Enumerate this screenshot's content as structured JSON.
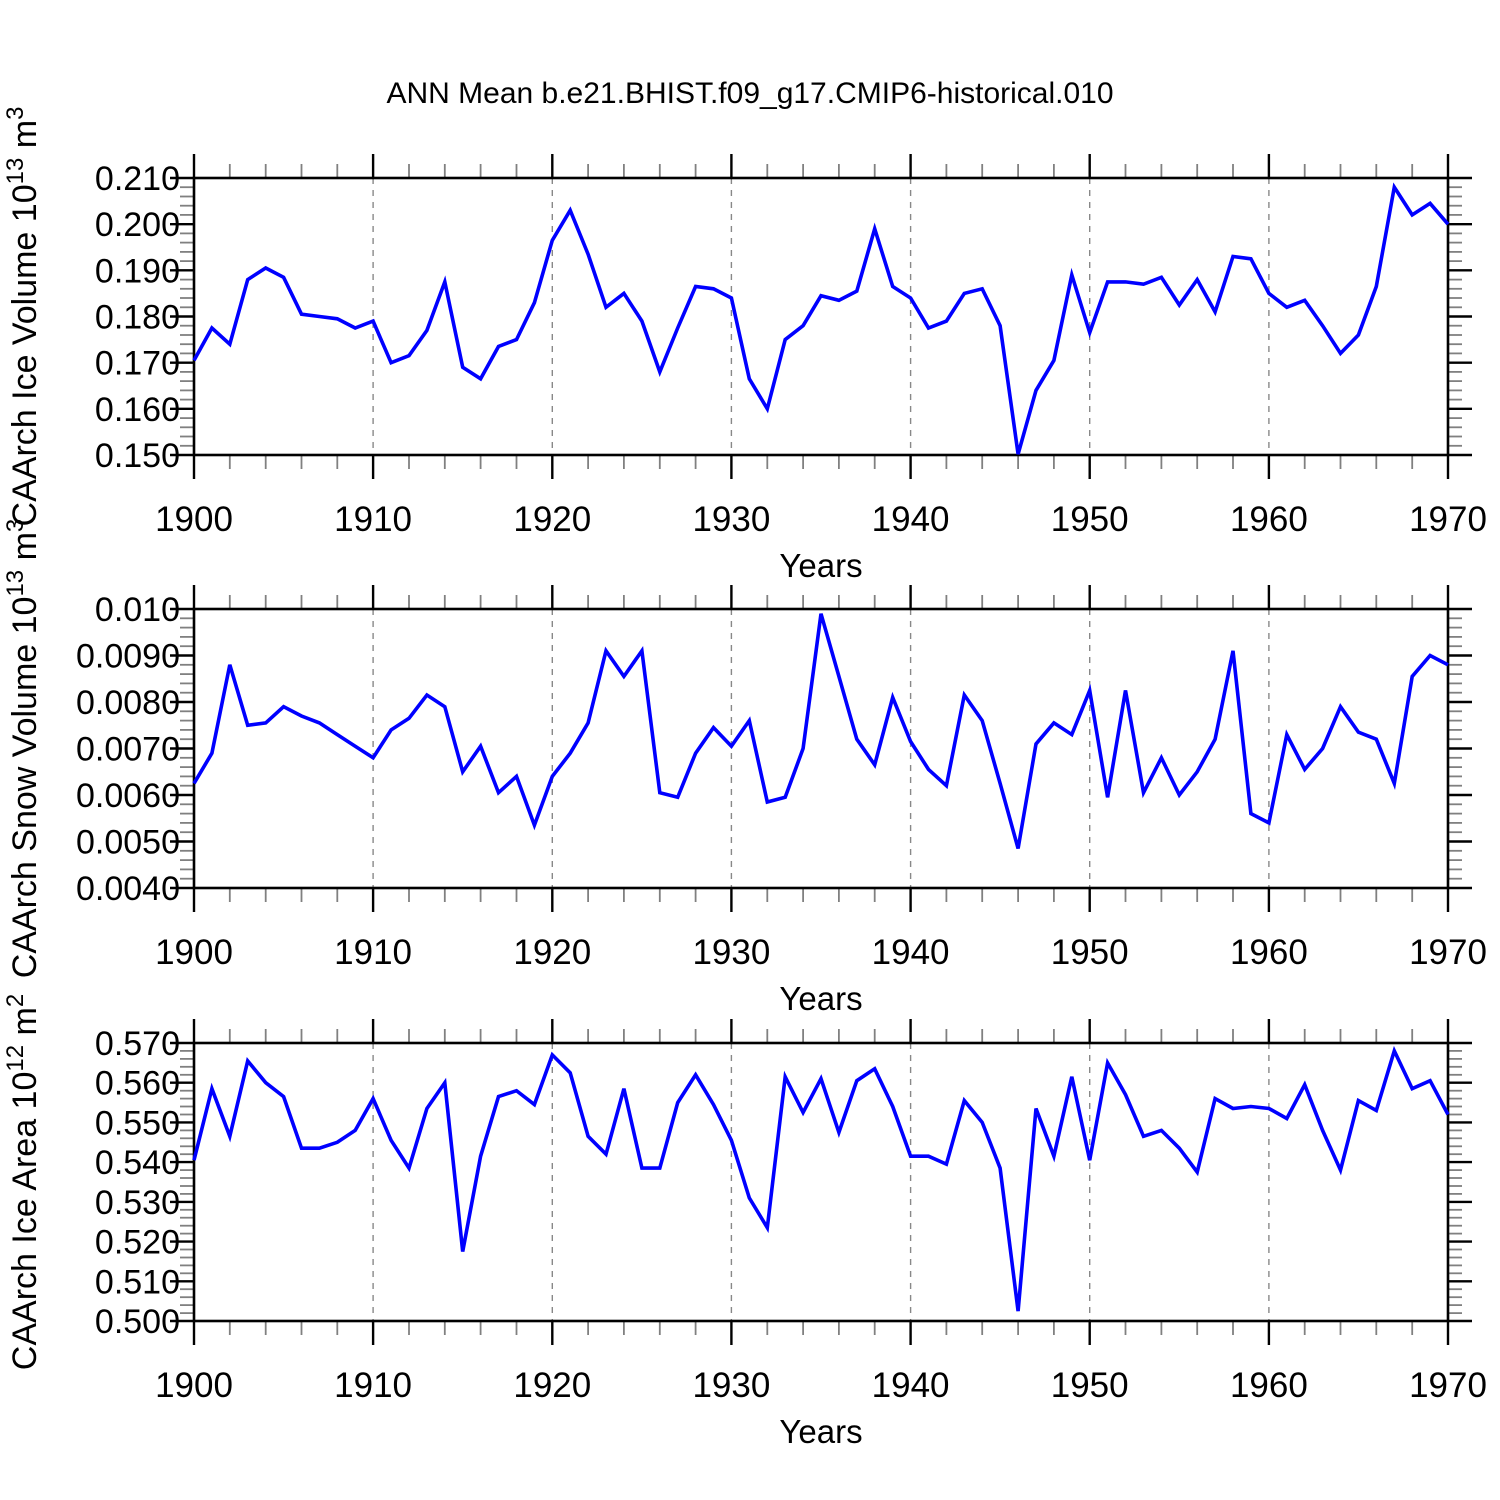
{
  "title": "ANN Mean b.e21.BHIST.f09_g17.CMIP6-historical.010",
  "colors": {
    "line": "#0000ff",
    "axis": "#000000",
    "minor_tick": "#808080",
    "grid": "#888888",
    "text": "#000000",
    "background": "#ffffff"
  },
  "chart_data": [
    {
      "id": "ice-volume",
      "type": "line",
      "xlabel": "Years",
      "ylabel_parts": [
        {
          "t": "CAArch Ice Volume 10"
        },
        {
          "t": "13",
          "sup": true
        },
        {
          "t": " m"
        },
        {
          "t": "3",
          "sup": true
        }
      ],
      "x": {
        "start": 1900,
        "end": 1970,
        "major_step": 10,
        "minor_step": 2,
        "tick_labels": [
          "1900",
          "1910",
          "1920",
          "1930",
          "1940",
          "1950",
          "1960",
          "1970"
        ],
        "grid_decades": [
          1910,
          1920,
          1930,
          1940,
          1950,
          1960
        ]
      },
      "ylim": [
        0.15,
        0.21
      ],
      "y_minor_step": 0.002,
      "yticks": [
        {
          "v": 0.15,
          "label": "0.150"
        },
        {
          "v": 0.16,
          "label": "0.160"
        },
        {
          "v": 0.17,
          "label": "0.170"
        },
        {
          "v": 0.18,
          "label": "0.180"
        },
        {
          "v": 0.19,
          "label": "0.190"
        },
        {
          "v": 0.2,
          "label": "0.200"
        },
        {
          "v": 0.21,
          "label": "0.210"
        }
      ],
      "values": [
        0.1705,
        0.1775,
        0.174,
        0.188,
        0.1905,
        0.1885,
        0.1805,
        0.18,
        0.1795,
        0.1775,
        0.179,
        0.17,
        0.1715,
        0.177,
        0.1875,
        0.169,
        0.1665,
        0.1735,
        0.175,
        0.183,
        0.1965,
        0.203,
        0.1935,
        0.182,
        0.185,
        0.179,
        0.168,
        0.1775,
        0.1865,
        0.186,
        0.184,
        0.1665,
        0.16,
        0.175,
        0.178,
        0.1845,
        0.1835,
        0.1855,
        0.199,
        0.1865,
        0.184,
        0.1775,
        0.179,
        0.185,
        0.186,
        0.178,
        0.1502,
        0.164,
        0.1705,
        0.189,
        0.1765,
        0.1875,
        0.1875,
        0.187,
        0.1885,
        0.1825,
        0.188,
        0.181,
        0.193,
        0.1925,
        0.185,
        0.182,
        0.1835,
        0.178,
        0.172,
        0.176,
        0.1865,
        0.208,
        0.202,
        0.2045,
        0.2
      ]
    },
    {
      "id": "snow-volume",
      "type": "line",
      "xlabel": "Years",
      "ylabel_parts": [
        {
          "t": "CAArch Snow Volume 10"
        },
        {
          "t": "13",
          "sup": true
        },
        {
          "t": " m"
        },
        {
          "t": "3",
          "sup": true
        }
      ],
      "x": {
        "start": 1900,
        "end": 1970,
        "major_step": 10,
        "minor_step": 2,
        "tick_labels": [
          "1900",
          "1910",
          "1920",
          "1930",
          "1940",
          "1950",
          "1960",
          "1970"
        ],
        "grid_decades": [
          1910,
          1920,
          1930,
          1940,
          1950,
          1960
        ]
      },
      "ylim": [
        0.004,
        0.01
      ],
      "y_minor_step": 0.0002,
      "yticks": [
        {
          "v": 0.004,
          "label": "0.0040"
        },
        {
          "v": 0.005,
          "label": "0.0050"
        },
        {
          "v": 0.006,
          "label": "0.0060"
        },
        {
          "v": 0.007,
          "label": "0.0070"
        },
        {
          "v": 0.008,
          "label": "0.0080"
        },
        {
          "v": 0.009,
          "label": "0.0090"
        },
        {
          "v": 0.01,
          "label": "0.010"
        }
      ],
      "values": [
        0.00625,
        0.0069,
        0.0088,
        0.0075,
        0.00755,
        0.0079,
        0.0077,
        0.00755,
        0.0073,
        0.00705,
        0.0068,
        0.0074,
        0.00765,
        0.00815,
        0.0079,
        0.0065,
        0.00705,
        0.00605,
        0.0064,
        0.00535,
        0.0064,
        0.0069,
        0.00755,
        0.0091,
        0.00855,
        0.0091,
        0.00605,
        0.00595,
        0.0069,
        0.00745,
        0.00705,
        0.0076,
        0.00585,
        0.00595,
        0.007,
        0.0099,
        0.00855,
        0.0072,
        0.00665,
        0.0081,
        0.00715,
        0.00655,
        0.0062,
        0.00815,
        0.0076,
        0.00625,
        0.00485,
        0.0071,
        0.00755,
        0.0073,
        0.00825,
        0.00595,
        0.00825,
        0.00605,
        0.0068,
        0.006,
        0.0065,
        0.0072,
        0.0091,
        0.0056,
        0.0054,
        0.0073,
        0.00655,
        0.007,
        0.0079,
        0.00735,
        0.0072,
        0.00625,
        0.00855,
        0.009,
        0.0088
      ]
    },
    {
      "id": "ice-area",
      "type": "line",
      "xlabel": "Years",
      "ylabel_parts": [
        {
          "t": "CAArch Ice Area 10"
        },
        {
          "t": "12",
          "sup": true
        },
        {
          "t": " m"
        },
        {
          "t": "2",
          "sup": true
        }
      ],
      "x": {
        "start": 1900,
        "end": 1970,
        "major_step": 10,
        "minor_step": 2,
        "tick_labels": [
          "1900",
          "1910",
          "1920",
          "1930",
          "1940",
          "1950",
          "1960",
          "1970"
        ],
        "grid_decades": [
          1910,
          1920,
          1930,
          1940,
          1950,
          1960
        ]
      },
      "ylim": [
        0.5,
        0.57
      ],
      "y_minor_step": 0.002,
      "yticks": [
        {
          "v": 0.5,
          "label": "0.500"
        },
        {
          "v": 0.51,
          "label": "0.510"
        },
        {
          "v": 0.52,
          "label": "0.520"
        },
        {
          "v": 0.53,
          "label": "0.530"
        },
        {
          "v": 0.54,
          "label": "0.540"
        },
        {
          "v": 0.55,
          "label": "0.550"
        },
        {
          "v": 0.56,
          "label": "0.560"
        },
        {
          "v": 0.57,
          "label": "0.570"
        }
      ],
      "values": [
        0.5405,
        0.5585,
        0.5465,
        0.5655,
        0.56,
        0.5565,
        0.5435,
        0.5435,
        0.545,
        0.548,
        0.556,
        0.5455,
        0.5385,
        0.5535,
        0.56,
        0.5175,
        0.5415,
        0.5565,
        0.558,
        0.5545,
        0.567,
        0.5625,
        0.5465,
        0.542,
        0.5585,
        0.5385,
        0.5385,
        0.555,
        0.562,
        0.5545,
        0.5455,
        0.531,
        0.5235,
        0.5615,
        0.5525,
        0.561,
        0.5475,
        0.5605,
        0.5635,
        0.554,
        0.5415,
        0.5415,
        0.5395,
        0.5555,
        0.55,
        0.5385,
        0.5025,
        0.5535,
        0.5415,
        0.5615,
        0.5405,
        0.565,
        0.557,
        0.5465,
        0.548,
        0.5435,
        0.5375,
        0.556,
        0.5535,
        0.554,
        0.5535,
        0.551,
        0.5595,
        0.548,
        0.538,
        0.5555,
        0.553,
        0.568,
        0.5585,
        0.5605,
        0.552
      ]
    }
  ]
}
